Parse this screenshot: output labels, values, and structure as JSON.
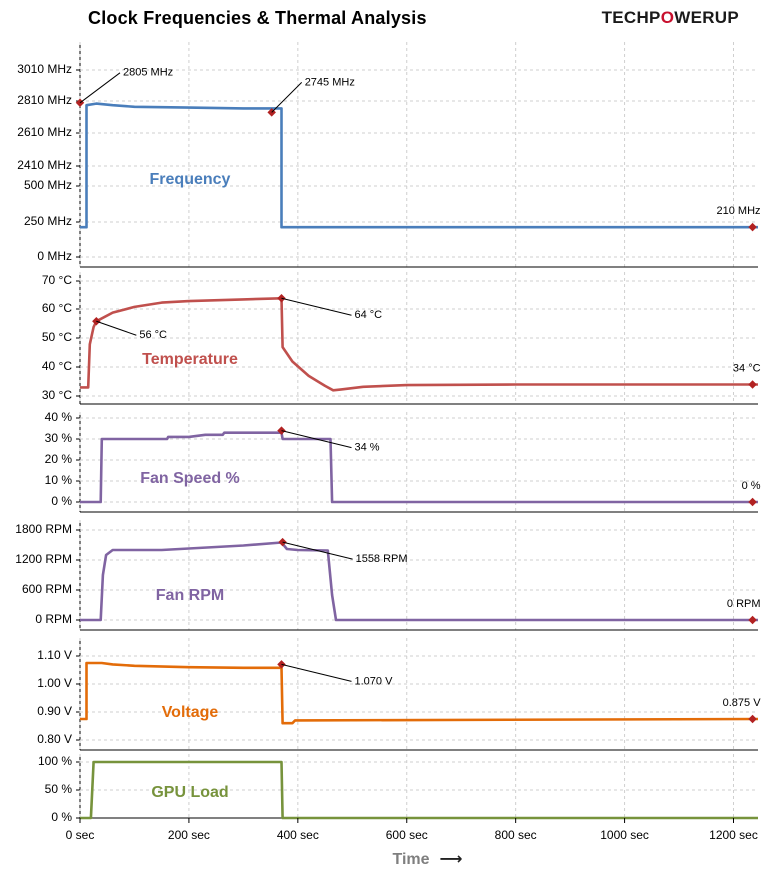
{
  "header": {
    "title": "Clock Frequencies & Thermal  Analysis",
    "logo_left": "TECHP",
    "logo_mid": "O",
    "logo_right": "WERUP"
  },
  "chart_data": {
    "type": "line",
    "x_axis": {
      "label": "Time",
      "arrow": "⟶",
      "ticks": [
        0,
        200,
        400,
        600,
        800,
        1000,
        1200
      ],
      "tick_labels": [
        "0 sec",
        "200 sec",
        "400 sec",
        "600 sec",
        "800 sec",
        "1000 sec",
        "1200 sec"
      ],
      "range": [
        0,
        1245
      ]
    },
    "panels": [
      {
        "name": "Frequency",
        "color": "#4a7ebb",
        "tick_labels": [
          "3010 MHz",
          "2810 MHz",
          "2610 MHz",
          "2410 MHz",
          "500 MHz",
          "250 MHz",
          "0 MHz"
        ],
        "upper_range": [
          2410,
          3010
        ],
        "lower_range": [
          0,
          500
        ],
        "series": [
          [
            0,
            210
          ],
          [
            12,
            210
          ],
          [
            12,
            2790
          ],
          [
            30,
            2800
          ],
          [
            60,
            2790
          ],
          [
            100,
            2780
          ],
          [
            200,
            2775
          ],
          [
            300,
            2770
          ],
          [
            370,
            2770
          ],
          [
            370,
            210
          ],
          [
            1245,
            210
          ]
        ],
        "annotations": [
          {
            "x": 0,
            "y": 2805,
            "text": "2805 MHz"
          },
          {
            "x": 352,
            "y": 2745,
            "text": "2745 MHz"
          },
          {
            "x": 1235,
            "y": 210,
            "text": "210 MHz"
          }
        ]
      },
      {
        "name": "Temperature",
        "color": "#c0504d",
        "tick_labels": [
          "70 °C",
          "60 °C",
          "50 °C",
          "40 °C",
          "30 °C"
        ],
        "range": [
          30,
          70
        ],
        "series": [
          [
            0,
            33
          ],
          [
            15,
            33
          ],
          [
            18,
            48
          ],
          [
            25,
            54
          ],
          [
            30,
            56
          ],
          [
            60,
            59
          ],
          [
            100,
            61
          ],
          [
            150,
            62.5
          ],
          [
            200,
            63
          ],
          [
            300,
            63.6
          ],
          [
            370,
            64
          ],
          [
            372,
            47
          ],
          [
            390,
            42
          ],
          [
            420,
            37
          ],
          [
            450,
            33.5
          ],
          [
            465,
            32
          ],
          [
            480,
            32.3
          ],
          [
            520,
            33.2
          ],
          [
            600,
            33.8
          ],
          [
            800,
            34
          ],
          [
            1000,
            34
          ],
          [
            1245,
            34
          ]
        ],
        "annotations": [
          {
            "x": 30,
            "y": 56,
            "text": "56 °C"
          },
          {
            "x": 370,
            "y": 64,
            "text": "64 °C"
          },
          {
            "x": 1235,
            "y": 34,
            "text": "34 °C"
          }
        ]
      },
      {
        "name": "Fan Speed %",
        "color": "#8064a2",
        "tick_labels": [
          "40 %",
          "30 %",
          "20 %",
          "10 %",
          "0 %"
        ],
        "range": [
          0,
          40
        ],
        "series": [
          [
            0,
            0
          ],
          [
            38,
            0
          ],
          [
            40,
            30
          ],
          [
            160,
            30
          ],
          [
            162,
            31
          ],
          [
            200,
            31
          ],
          [
            230,
            32
          ],
          [
            262,
            32
          ],
          [
            265,
            33
          ],
          [
            370,
            33
          ],
          [
            372,
            30
          ],
          [
            460,
            30
          ],
          [
            463,
            0
          ],
          [
            1245,
            0
          ]
        ],
        "annotations": [
          {
            "x": 370,
            "y": 34,
            "text": "34 %"
          },
          {
            "x": 1235,
            "y": 0,
            "text": "0 %"
          }
        ]
      },
      {
        "name": "Fan RPM",
        "color": "#8064a2",
        "tick_labels": [
          "1800 RPM",
          "1200 RPM",
          "600 RPM",
          "0 RPM"
        ],
        "range": [
          0,
          1800
        ],
        "series": [
          [
            0,
            0
          ],
          [
            38,
            0
          ],
          [
            42,
            900
          ],
          [
            48,
            1300
          ],
          [
            60,
            1400
          ],
          [
            150,
            1400
          ],
          [
            200,
            1430
          ],
          [
            300,
            1490
          ],
          [
            370,
            1550
          ],
          [
            380,
            1420
          ],
          [
            400,
            1400
          ],
          [
            455,
            1390
          ],
          [
            463,
            500
          ],
          [
            470,
            0
          ],
          [
            1245,
            0
          ]
        ],
        "annotations": [
          {
            "x": 372,
            "y": 1558,
            "text": "1558 RPM"
          },
          {
            "x": 1235,
            "y": 0,
            "text": "0 RPM"
          }
        ]
      },
      {
        "name": "Voltage",
        "color": "#e36c09",
        "tick_labels": [
          "1.10 V",
          "1.00 V",
          "0.90 V",
          "0.80 V"
        ],
        "range": [
          0.8,
          1.1
        ],
        "series": [
          [
            0,
            0.875
          ],
          [
            12,
            0.875
          ],
          [
            12,
            1.075
          ],
          [
            40,
            1.075
          ],
          [
            60,
            1.07
          ],
          [
            100,
            1.065
          ],
          [
            200,
            1.06
          ],
          [
            300,
            1.058
          ],
          [
            370,
            1.058
          ],
          [
            372,
            0.86
          ],
          [
            390,
            0.86
          ],
          [
            395,
            0.87
          ],
          [
            1245,
            0.875
          ]
        ],
        "annotations": [
          {
            "x": 370,
            "y": 1.07,
            "text": "1.070 V"
          },
          {
            "x": 1235,
            "y": 0.875,
            "text": "0.875 V"
          }
        ]
      },
      {
        "name": "GPU Load",
        "color": "#77933c",
        "tick_labels": [
          "100 %",
          "50 %",
          "0 %"
        ],
        "range": [
          0,
          100
        ],
        "series": [
          [
            0,
            0
          ],
          [
            20,
            0
          ],
          [
            25,
            100
          ],
          [
            370,
            100
          ],
          [
            372,
            0
          ],
          [
            1245,
            0
          ]
        ],
        "annotations": []
      }
    ]
  }
}
